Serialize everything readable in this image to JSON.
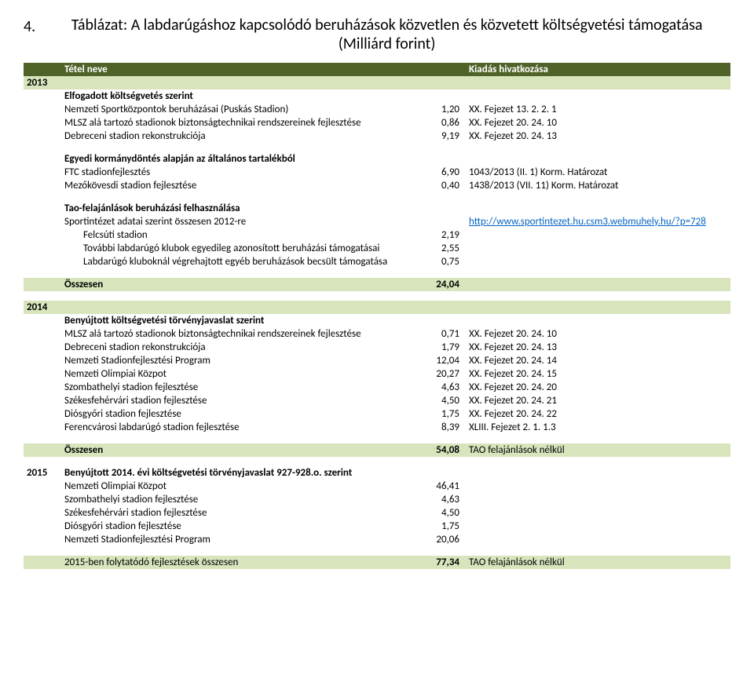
{
  "title_num": "4.",
  "title": "Táblázat: A labdarúgáshoz kapcsolódó beruházások közvetlen és közvetett költségvetési támogatása (Milliárd forint)",
  "header": {
    "year": "",
    "name": "Tétel neve",
    "val": "",
    "ref": "Kiadás hivatkozása"
  },
  "y2013": "2013",
  "s1_title": "Elfogadott költségvetés szerint",
  "s1_rows": [
    {
      "name": "Nemzeti Sportközpontok beruházásai (Puskás Stadion)",
      "val": "1,20",
      "ref": "XX. Fejezet 13. 2. 2. 1"
    },
    {
      "name": "MLSZ alá tartozó stadionok biztonságtechnikai rendszereinek fejlesztése",
      "val": "0,86",
      "ref": "XX. Fejezet 20. 24. 10"
    },
    {
      "name": "Debreceni stadion rekonstrukciója",
      "val": "9,19",
      "ref": "XX. Fejezet 20. 24. 13"
    }
  ],
  "s2_title": "Egyedi kormánydöntés alapján az általános tartalékból",
  "s2_rows": [
    {
      "name": "FTC stadionfejlesztés",
      "val": "6,90",
      "ref": "1043/2013 (II. 1) Korm. Határozat"
    },
    {
      "name": "Mezőkövesdi stadion fejlesztése",
      "val": "0,40",
      "ref": "1438/2013 (VII. 11) Korm. Határozat"
    }
  ],
  "s3_title": "Tao-felajánlások beruházási felhasználása",
  "s3_link_row": {
    "name": "Sportintézet adatai szerint összesen 2012-re",
    "ref": "http://www.sportintezet.hu.csm3.webmuhely.hu/?p=728"
  },
  "s3_rows": [
    {
      "name": "Felcsúti stadion",
      "val": "2,19"
    },
    {
      "name": "További labdarúgó klubok egyedileg azonosított beruházási támogatásai",
      "val": "2,55"
    },
    {
      "name": "Labdarúgó kluboknál végrehajtott egyéb beruházások becsült támogatása",
      "val": "0,75"
    }
  ],
  "total13": {
    "name": "Összesen",
    "val": "24,04"
  },
  "y2014": "2014",
  "s4_title": "Benyújtott költségvetési törvényjavaslat szerint",
  "s4_rows": [
    {
      "name": "MLSZ alá tartozó stadionok biztonságtechnikai rendszereinek fejlesztése",
      "val": "0,71",
      "ref": "XX. Fejezet 20. 24. 10"
    },
    {
      "name": "Debreceni stadion rekonstrukciója",
      "val": "1,79",
      "ref": "XX. Fejezet 20. 24. 13"
    },
    {
      "name": "Nemzeti Stadionfejlesztési Program",
      "val": "12,04",
      "ref": "XX. Fejezet 20. 24. 14"
    },
    {
      "name": "Nemzeti Olimpiai Közpot",
      "val": "20,27",
      "ref": "XX. Fejezet 20. 24. 15"
    },
    {
      "name": "Szombathelyi stadion fejlesztése",
      "val": "4,63",
      "ref": "XX. Fejezet 20. 24. 20"
    },
    {
      "name": "Székesfehérvári stadion fejlesztése",
      "val": "4,50",
      "ref": "XX. Fejezet 20. 24. 21"
    },
    {
      "name": "Diósgyőri stadion fejlesztése",
      "val": "1,75",
      "ref": "XX. Fejezet 20. 24. 22"
    },
    {
      "name": "Ferencvárosi labdarúgó stadion fejlesztése",
      "val": "8,39",
      "ref": "XLIII. Fejezet 2. 1. 1.3"
    }
  ],
  "total14": {
    "name": "Összesen",
    "val": "54,08",
    "ref": "TAO felajánlások nélkül"
  },
  "y2015": "2015",
  "s5_title": "Benyújtott 2014. évi költségvetési törvényjavaslat 927-928.o. szerint",
  "s5_rows": [
    {
      "name": "Nemzeti Olimpiai Közpot",
      "val": "46,41"
    },
    {
      "name": "Szombathelyi stadion fejlesztése",
      "val": "4,63"
    },
    {
      "name": "Székesfehérvári stadion fejlesztése",
      "val": "4,50"
    },
    {
      "name": "Diósgyőri stadion fejlesztése",
      "val": "1,75"
    },
    {
      "name": "Nemzeti Stadionfejlesztési Program",
      "val": "20,06"
    }
  ],
  "total15": {
    "name": "2015-ben folytatódó fejlesztések összesen",
    "val": "77,34",
    "ref": "TAO felajánlások nélkül"
  }
}
